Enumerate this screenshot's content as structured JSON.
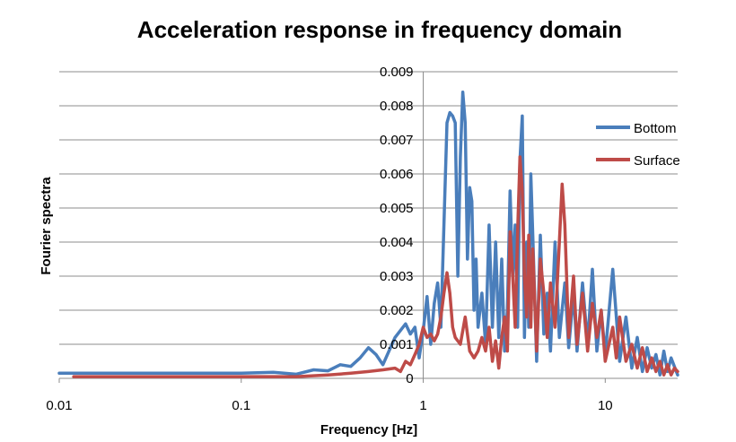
{
  "chart_data": {
    "type": "line",
    "title": "Acceleration response in frequency domain",
    "xlabel": "Frequency [Hz]",
    "ylabel": "Fourier spectra",
    "xscale": "log",
    "xlim": [
      0.01,
      25
    ],
    "ylim": [
      0,
      0.009
    ],
    "x_ticks": [
      0.01,
      0.1,
      1,
      10
    ],
    "x_tick_labels": [
      "0.01",
      "0.1",
      "1",
      "10"
    ],
    "y_ticks": [
      0,
      0.001,
      0.002,
      0.003,
      0.004,
      0.005,
      0.006,
      0.007,
      0.008,
      0.009
    ],
    "y_tick_labels": [
      "0",
      "0.001",
      "0.002",
      "0.003",
      "0.004",
      "0.005",
      "0.006",
      "0.007",
      "0.008",
      "0.009"
    ],
    "grid": "horizontal",
    "legend": "right",
    "series": [
      {
        "name": "Bottom",
        "color": "#4a7ebb",
        "points": [
          [
            0.01,
            0.00015
          ],
          [
            0.05,
            0.00015
          ],
          [
            0.1,
            0.00015
          ],
          [
            0.15,
            0.00018
          ],
          [
            0.2,
            0.00012
          ],
          [
            0.25,
            0.00025
          ],
          [
            0.3,
            0.00022
          ],
          [
            0.35,
            0.0004
          ],
          [
            0.4,
            0.00035
          ],
          [
            0.45,
            0.0006
          ],
          [
            0.5,
            0.0009
          ],
          [
            0.55,
            0.0007
          ],
          [
            0.6,
            0.0004
          ],
          [
            0.7,
            0.0012
          ],
          [
            0.8,
            0.0016
          ],
          [
            0.85,
            0.0013
          ],
          [
            0.9,
            0.0015
          ],
          [
            0.95,
            0.0006
          ],
          [
            1.0,
            0.0014
          ],
          [
            1.05,
            0.0024
          ],
          [
            1.1,
            0.001
          ],
          [
            1.15,
            0.0022
          ],
          [
            1.2,
            0.0028
          ],
          [
            1.25,
            0.0015
          ],
          [
            1.3,
            0.0045
          ],
          [
            1.35,
            0.0075
          ],
          [
            1.4,
            0.0078
          ],
          [
            1.45,
            0.0077
          ],
          [
            1.5,
            0.0075
          ],
          [
            1.55,
            0.003
          ],
          [
            1.6,
            0.0065
          ],
          [
            1.65,
            0.0084
          ],
          [
            1.7,
            0.0075
          ],
          [
            1.75,
            0.0035
          ],
          [
            1.8,
            0.0056
          ],
          [
            1.85,
            0.0052
          ],
          [
            1.9,
            0.002
          ],
          [
            1.95,
            0.0035
          ],
          [
            2.0,
            0.0015
          ],
          [
            2.1,
            0.0025
          ],
          [
            2.2,
            0.001
          ],
          [
            2.3,
            0.0045
          ],
          [
            2.4,
            0.0015
          ],
          [
            2.5,
            0.004
          ],
          [
            2.6,
            0.0012
          ],
          [
            2.7,
            0.0035
          ],
          [
            2.8,
            0.0008
          ],
          [
            2.9,
            0.002
          ],
          [
            3.0,
            0.0055
          ],
          [
            3.1,
            0.003
          ],
          [
            3.2,
            0.0045
          ],
          [
            3.3,
            0.0015
          ],
          [
            3.4,
            0.0064
          ],
          [
            3.5,
            0.0077
          ],
          [
            3.6,
            0.0012
          ],
          [
            3.7,
            0.004
          ],
          [
            3.8,
            0.0015
          ],
          [
            3.9,
            0.006
          ],
          [
            4.0,
            0.0042
          ],
          [
            4.2,
            0.0005
          ],
          [
            4.4,
            0.0042
          ],
          [
            4.6,
            0.0013
          ],
          [
            4.8,
            0.0025
          ],
          [
            5.0,
            0.0008
          ],
          [
            5.3,
            0.004
          ],
          [
            5.6,
            0.0012
          ],
          [
            6.0,
            0.0028
          ],
          [
            6.3,
            0.0009
          ],
          [
            6.7,
            0.0025
          ],
          [
            7.0,
            0.0008
          ],
          [
            7.5,
            0.0028
          ],
          [
            8.0,
            0.001
          ],
          [
            8.5,
            0.0032
          ],
          [
            9.0,
            0.0008
          ],
          [
            9.5,
            0.002
          ],
          [
            10.0,
            0.0007
          ],
          [
            11.0,
            0.0032
          ],
          [
            12.0,
            0.0005
          ],
          [
            13.0,
            0.0018
          ],
          [
            14.0,
            0.0003
          ],
          [
            15.0,
            0.0012
          ],
          [
            16.0,
            0.0002
          ],
          [
            17.0,
            0.0009
          ],
          [
            18.0,
            0.0003
          ],
          [
            19.0,
            0.0007
          ],
          [
            20.0,
            0.0001
          ],
          [
            21.0,
            0.0008
          ],
          [
            22.0,
            0.0002
          ],
          [
            23.0,
            0.0006
          ],
          [
            25.0,
            0.0001
          ]
        ]
      },
      {
        "name": "Surface",
        "color": "#be4b48",
        "points": [
          [
            0.012,
            5e-05
          ],
          [
            0.05,
            5e-05
          ],
          [
            0.1,
            5e-05
          ],
          [
            0.2,
            5e-05
          ],
          [
            0.3,
            0.0001
          ],
          [
            0.4,
            0.00015
          ],
          [
            0.5,
            0.0002
          ],
          [
            0.6,
            0.00025
          ],
          [
            0.7,
            0.0003
          ],
          [
            0.75,
            0.0002
          ],
          [
            0.8,
            0.0005
          ],
          [
            0.85,
            0.0004
          ],
          [
            0.9,
            0.0007
          ],
          [
            0.95,
            0.001
          ],
          [
            1.0,
            0.0015
          ],
          [
            1.05,
            0.0012
          ],
          [
            1.1,
            0.0013
          ],
          [
            1.15,
            0.0011
          ],
          [
            1.2,
            0.0013
          ],
          [
            1.25,
            0.0018
          ],
          [
            1.3,
            0.0025
          ],
          [
            1.35,
            0.0031
          ],
          [
            1.4,
            0.0025
          ],
          [
            1.45,
            0.0015
          ],
          [
            1.5,
            0.0012
          ],
          [
            1.6,
            0.001
          ],
          [
            1.7,
            0.0018
          ],
          [
            1.8,
            0.0008
          ],
          [
            1.9,
            0.0006
          ],
          [
            2.0,
            0.0008
          ],
          [
            2.1,
            0.0012
          ],
          [
            2.2,
            0.0008
          ],
          [
            2.3,
            0.0015
          ],
          [
            2.4,
            0.0005
          ],
          [
            2.5,
            0.0011
          ],
          [
            2.6,
            0.0003
          ],
          [
            2.7,
            0.0012
          ],
          [
            2.8,
            0.0018
          ],
          [
            2.9,
            0.0008
          ],
          [
            3.0,
            0.0043
          ],
          [
            3.1,
            0.003
          ],
          [
            3.2,
            0.0015
          ],
          [
            3.3,
            0.0043
          ],
          [
            3.4,
            0.0065
          ],
          [
            3.5,
            0.0055
          ],
          [
            3.6,
            0.003
          ],
          [
            3.7,
            0.0018
          ],
          [
            3.8,
            0.0042
          ],
          [
            3.9,
            0.0015
          ],
          [
            4.0,
            0.0038
          ],
          [
            4.2,
            0.0008
          ],
          [
            4.4,
            0.0035
          ],
          [
            4.6,
            0.0025
          ],
          [
            4.8,
            0.0012
          ],
          [
            5.0,
            0.0028
          ],
          [
            5.3,
            0.0015
          ],
          [
            5.6,
            0.004
          ],
          [
            5.8,
            0.0057
          ],
          [
            6.0,
            0.0045
          ],
          [
            6.3,
            0.0012
          ],
          [
            6.7,
            0.003
          ],
          [
            7.0,
            0.001
          ],
          [
            7.5,
            0.0025
          ],
          [
            8.0,
            0.0008
          ],
          [
            8.5,
            0.0022
          ],
          [
            9.0,
            0.0012
          ],
          [
            9.5,
            0.002
          ],
          [
            10.0,
            0.0005
          ],
          [
            11.0,
            0.0015
          ],
          [
            11.5,
            0.0006
          ],
          [
            12.0,
            0.0018
          ],
          [
            13.0,
            0.0005
          ],
          [
            14.0,
            0.001
          ],
          [
            15.0,
            0.0003
          ],
          [
            16.0,
            0.0009
          ],
          [
            17.0,
            0.0002
          ],
          [
            18.0,
            0.0006
          ],
          [
            19.0,
            0.0002
          ],
          [
            20.0,
            0.0005
          ],
          [
            21.0,
            0.0001
          ],
          [
            22.0,
            0.0004
          ],
          [
            23.0,
            0.0001
          ],
          [
            24.0,
            0.0003
          ],
          [
            25.0,
            0.0002
          ]
        ]
      }
    ]
  }
}
